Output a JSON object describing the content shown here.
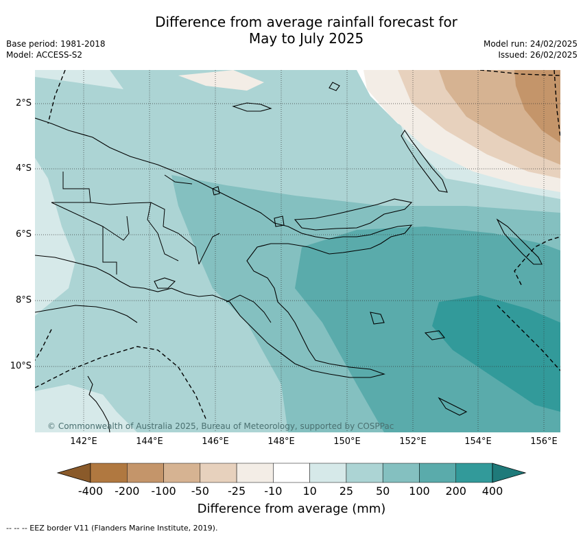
{
  "title_line1": "Difference from average rainfall forecast for",
  "title_line2": "May to July 2025",
  "base_period": "Base period: 1981-2018",
  "model": "Model: ACCESS-S2",
  "model_run": "Model run: 24/02/2025",
  "issued": "Issued: 26/02/2025",
  "copyright": "© Commonwealth of Australia 2025, Bureau of Meteorology, supported by COSPPac",
  "lat_labels": [
    "2°S",
    "4°S",
    "6°S",
    "8°S",
    "10°S"
  ],
  "lon_labels": [
    "142°E",
    "144°E",
    "146°E",
    "148°E",
    "150°E",
    "152°E",
    "154°E",
    "156°E"
  ],
  "colorbar": {
    "label": "Difference from average (mm)",
    "ticks": [
      "-400",
      "-200",
      "-100",
      "-50",
      "-25",
      "-10",
      "10",
      "25",
      "50",
      "100",
      "200",
      "400"
    ],
    "colors": [
      "#8a5a2a",
      "#b07840",
      "#c4956a",
      "#d6b392",
      "#e7d1bd",
      "#f3ede6",
      "#ffffff",
      "#d6e9e9",
      "#acd4d4",
      "#84c0c0",
      "#5aabab",
      "#329a9a",
      "#1f7a7a"
    ]
  },
  "eez_note": "--  --  -- EEZ border V11 (Flanders Marine Institute, 2019)."
}
